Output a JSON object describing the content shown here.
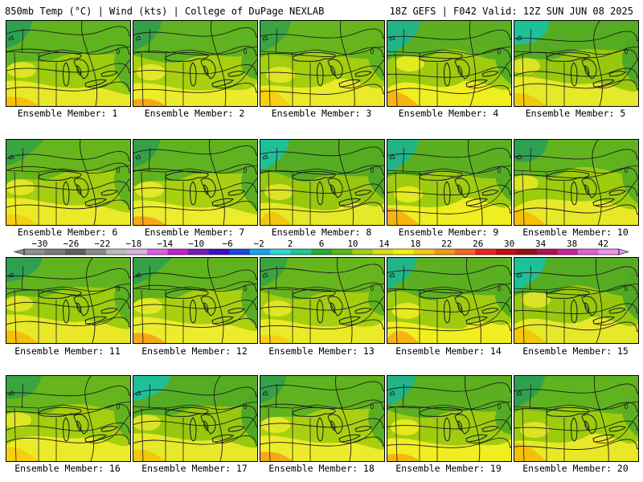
{
  "header": {
    "left": "850mb Temp (°C) | Wind (kts) | College of DuPage NEXLAB",
    "right": "18Z GEFS | F042 Valid: 12Z SUN JUN 08 2025"
  },
  "members": [
    {
      "label": "Ensemble Member: 1",
      "theme": 0
    },
    {
      "label": "Ensemble Member: 2",
      "theme": 1
    },
    {
      "label": "Ensemble Member: 3",
      "theme": 2
    },
    {
      "label": "Ensemble Member: 4",
      "theme": 3
    },
    {
      "label": "Ensemble Member: 5",
      "theme": 4
    },
    {
      "label": "Ensemble Member: 6",
      "theme": 2
    },
    {
      "label": "Ensemble Member: 7",
      "theme": 1
    },
    {
      "label": "Ensemble Member: 8",
      "theme": 4
    },
    {
      "label": "Ensemble Member: 9",
      "theme": 3
    },
    {
      "label": "Ensemble Member: 10",
      "theme": 0
    },
    {
      "label": "Ensemble Member: 11",
      "theme": 0
    },
    {
      "label": "Ensemble Member: 12",
      "theme": 1
    },
    {
      "label": "Ensemble Member: 13",
      "theme": 2
    },
    {
      "label": "Ensemble Member: 14",
      "theme": 3
    },
    {
      "label": "Ensemble Member: 15",
      "theme": 4
    },
    {
      "label": "Ensemble Member: 16",
      "theme": 2
    },
    {
      "label": "Ensemble Member: 17",
      "theme": 4
    },
    {
      "label": "Ensemble Member: 18",
      "theme": 1
    },
    {
      "label": "Ensemble Member: 19",
      "theme": 3
    },
    {
      "label": "Ensemble Member: 20",
      "theme": 0
    }
  ],
  "colorbar": {
    "labels": [
      "−30",
      "−26",
      "−22",
      "−18",
      "−14",
      "−10",
      "−6",
      "−2",
      "2",
      "6",
      "10",
      "14",
      "18",
      "22",
      "26",
      "30",
      "34",
      "38",
      "42"
    ],
    "colors": [
      "#909090",
      "#7a7a7a",
      "#5e5e5e",
      "#8a8a8a",
      "#bcbcbc",
      "#d6b4e0",
      "#e05ce8",
      "#c020d0",
      "#7a18b8",
      "#3a10c8",
      "#1848e0",
      "#1aa0f0",
      "#30d8d8",
      "#20c890",
      "#28a838",
      "#58b818",
      "#9cd014",
      "#d8e010",
      "#f6f00a",
      "#f8c810",
      "#f89818",
      "#f86820",
      "#f02020",
      "#c80c10",
      "#961010",
      "#b01058",
      "#d020a0",
      "#e060d8",
      "#f090f0"
    ],
    "ticks": [
      -30,
      -26,
      -22,
      -18,
      -14,
      -10,
      -6,
      -2,
      2,
      6,
      10,
      14,
      18,
      22,
      26,
      30,
      34,
      38,
      42
    ],
    "range": [
      -32,
      44
    ]
  },
  "map_palette": {
    "themes": [
      {
        "base": "#9ccc0c",
        "warm": "#e8e828",
        "hot": "#f4c00a",
        "cool": "#5ab020",
        "cold": "#2ea050"
      },
      {
        "base": "#a8d010",
        "warm": "#ecec2c",
        "hot": "#f6a818",
        "cool": "#58ae22",
        "cold": "#34a048"
      },
      {
        "base": "#a4ce0e",
        "warm": "#eaea28",
        "hot": "#f4d010",
        "cool": "#60b21e",
        "cold": "#3aa440"
      },
      {
        "base": "#a0cc10",
        "warm": "#f0ee20",
        "hot": "#f6b414",
        "cool": "#54ac22",
        "cold": "#22b486"
      },
      {
        "base": "#98c80e",
        "warm": "#e6e82a",
        "hot": "#f2c80c",
        "cool": "#4ea826",
        "cold": "#1ec098"
      }
    ],
    "lines": "#1a1a1a"
  }
}
